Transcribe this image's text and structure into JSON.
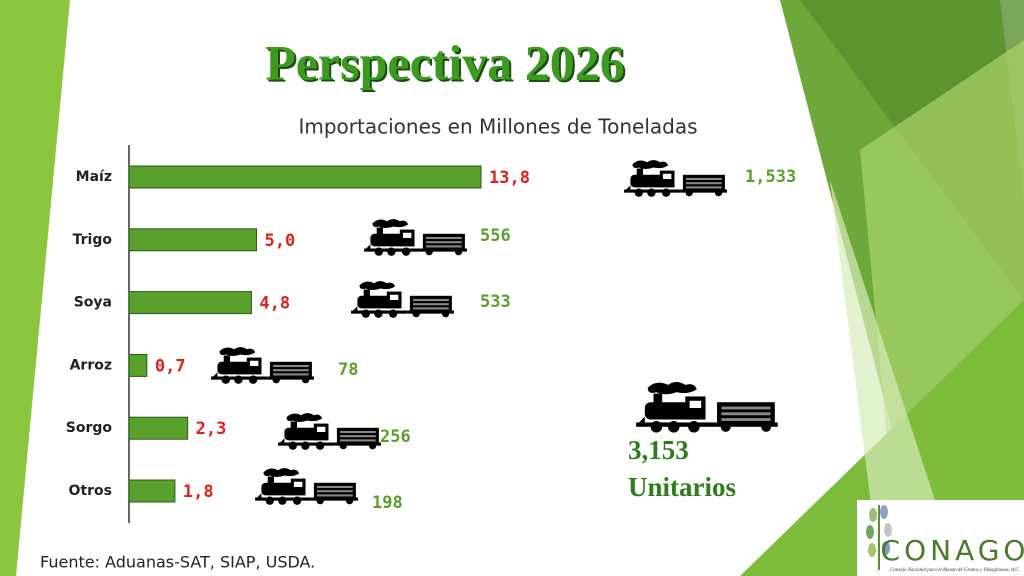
{
  "chart_data": {
    "type": "bar",
    "title": "Perspectiva 2026",
    "subtitle": "Importaciones en Millones de Toneladas",
    "categories": [
      "Maíz",
      "Trigo",
      "Soya",
      "Arroz",
      "Sorgo",
      "Otros"
    ],
    "values": [
      13.8,
      5.0,
      4.8,
      0.7,
      2.3,
      1.8
    ],
    "value_labels": [
      "13,8",
      "5,0",
      "4,8",
      "0,7",
      "2,3",
      "1,8"
    ],
    "color": "#5aa02c",
    "annotations": {
      "trains": [
        1533,
        556,
        533,
        78,
        256,
        198
      ],
      "train_labels": [
        "1,533",
        "556",
        "533",
        "78",
        "256",
        "198"
      ],
      "total": 3153,
      "total_label": "3,153",
      "total_unit": "Unitarios"
    },
    "source": "Fuente: Aduanas-SAT, SIAP, USDA.",
    "logo": {
      "name": "CONAGO",
      "tagline": "Consejo Nacional para el Abasto de Granos y Oleaginosas, A.C."
    }
  }
}
